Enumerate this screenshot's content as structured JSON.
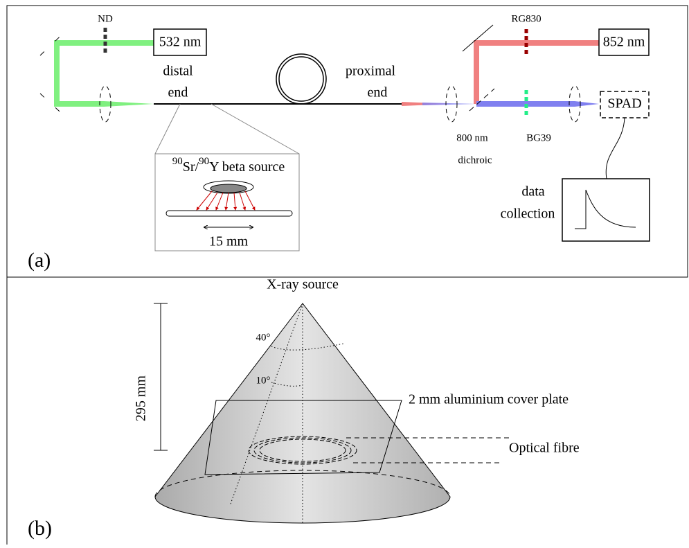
{
  "panel_a": {
    "label": "(a)",
    "nd": "ND",
    "laser_green": "532 nm",
    "distal": [
      "distal",
      "end"
    ],
    "proximal": [
      "proximal",
      "end"
    ],
    "inset": {
      "iso1": "90",
      "el1": "Sr/",
      "iso2": "90",
      "el2": "Y beta source",
      "length": "15 mm"
    },
    "rg830": "RG830",
    "laser_red": "852 nm",
    "dichroic": [
      "800 nm",
      "dichroic"
    ],
    "bg39": "BG39",
    "spad": "SPAD",
    "daq": [
      "data",
      "collection"
    ]
  },
  "panel_b": {
    "label": "(b)",
    "source": "X-ray source",
    "distance": "295 mm",
    "angle40": "40°",
    "angle10": "10°",
    "plate": "2 mm aluminium cover plate",
    "fibre": "Optical fibre"
  }
}
